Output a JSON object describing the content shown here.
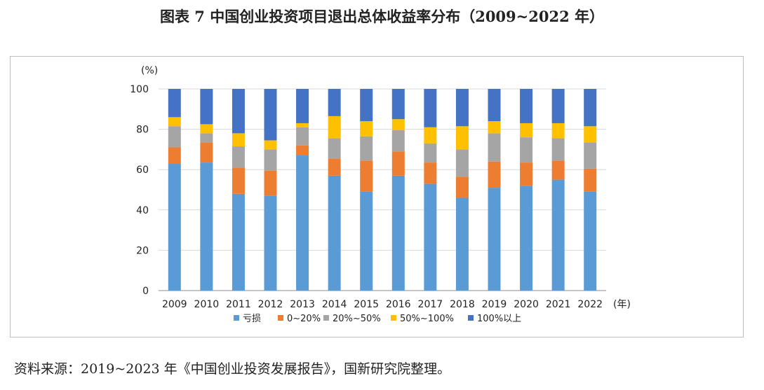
{
  "title": "图表 7  中国创业投资项目退出总体收益率分布（2009~2022 年）",
  "source": "资料来源：2019~2023 年《中国创业投资发展报告》，国新研究院整理。",
  "chart_data": {
    "type": "bar",
    "stacked": true,
    "ylabel": "(%)",
    "xlabel": "(年)",
    "ylim": [
      0,
      100
    ],
    "yticks": [
      0,
      20,
      40,
      60,
      80,
      100
    ],
    "grid": true,
    "legend_position": "bottom",
    "categories": [
      "2009",
      "2010",
      "2011",
      "2012",
      "2013",
      "2014",
      "2015",
      "2016",
      "2017",
      "2018",
      "2019",
      "2020",
      "2021",
      "2022"
    ],
    "series": [
      {
        "name": "亏损",
        "color": "#5b9bd5",
        "values": [
          63,
          63.5,
          48,
          47,
          67,
          57,
          49,
          57,
          53,
          46,
          51,
          52,
          55,
          49
        ]
      },
      {
        "name": "0~20%",
        "color": "#ed7d31",
        "values": [
          8,
          10,
          13,
          12.5,
          5,
          8.5,
          15.5,
          12,
          10.5,
          10.5,
          13,
          11.5,
          9.5,
          11.5
        ]
      },
      {
        "name": "20%~50%",
        "color": "#a5a5a5",
        "values": [
          10.5,
          4.5,
          10.5,
          10.5,
          9,
          10,
          12,
          10.5,
          9.5,
          13.5,
          14,
          12.5,
          11,
          13
        ]
      },
      {
        "name": "50%~100%",
        "color": "#ffc000",
        "values": [
          4.5,
          4.5,
          6.5,
          4.5,
          2,
          11,
          7.5,
          5.5,
          8,
          11.5,
          6,
          7,
          7.5,
          8
        ]
      },
      {
        "name": "100%以上",
        "color": "#4472c4",
        "values": [
          14,
          17.5,
          22,
          25.5,
          17,
          13.5,
          16,
          15,
          19,
          18.5,
          16,
          17,
          17,
          18.5
        ]
      }
    ]
  }
}
